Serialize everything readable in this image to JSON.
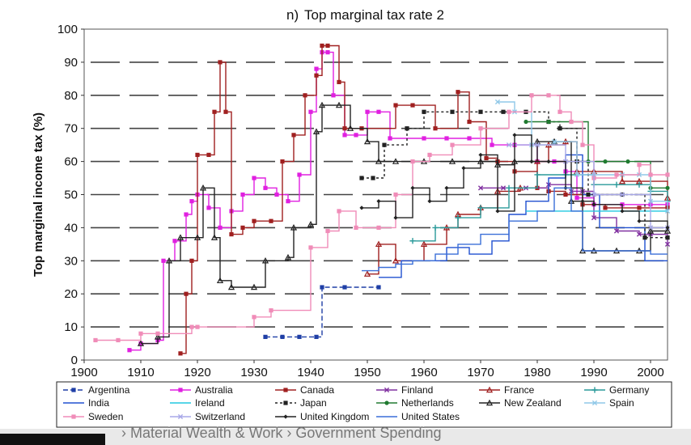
{
  "chart_data": {
    "type": "line",
    "title": "Top marginal tax rate 2",
    "panel_letter": "n)",
    "ylabel": "Top marginal income tax (%)",
    "xlabel": "",
    "xlim": [
      1900,
      2003
    ],
    "ylim": [
      0,
      100
    ],
    "x_ticks": [
      1900,
      1910,
      1920,
      1930,
      1940,
      1950,
      1960,
      1970,
      1980,
      1990,
      2000
    ],
    "y_ticks": [
      0,
      10,
      20,
      30,
      40,
      50,
      60,
      70,
      80,
      90,
      100
    ],
    "grid": "horizontal dashed",
    "legend_position": "bottom",
    "series": [
      {
        "name": "Argentina",
        "color": "#1f3fa6",
        "dash": "6,3",
        "marker": "square",
        "points": [
          [
            1932,
            7
          ],
          [
            1935,
            7
          ],
          [
            1938,
            7
          ],
          [
            1941,
            7
          ],
          [
            1942,
            22
          ],
          [
            1946,
            22
          ],
          [
            1952,
            22
          ]
        ]
      },
      {
        "name": "Australia",
        "color": "#e020e0",
        "dash": "",
        "marker": "square",
        "points": [
          [
            1908,
            3
          ],
          [
            1910,
            5
          ],
          [
            1913,
            6
          ],
          [
            1914,
            30
          ],
          [
            1916,
            36
          ],
          [
            1918,
            44
          ],
          [
            1919,
            48
          ],
          [
            1920,
            50
          ],
          [
            1922,
            46
          ],
          [
            1924,
            40
          ],
          [
            1926,
            45
          ],
          [
            1928,
            50
          ],
          [
            1930,
            55
          ],
          [
            1932,
            52
          ],
          [
            1934,
            50
          ],
          [
            1936,
            48
          ],
          [
            1938,
            56
          ],
          [
            1940,
            75
          ],
          [
            1941,
            88
          ],
          [
            1942,
            93
          ],
          [
            1943,
            93
          ],
          [
            1944,
            80
          ],
          [
            1946,
            68
          ],
          [
            1948,
            68
          ],
          [
            1950,
            75
          ],
          [
            1952,
            75
          ],
          [
            1954,
            67
          ],
          [
            1960,
            67
          ],
          [
            1964,
            67
          ],
          [
            1968,
            67
          ],
          [
            1972,
            65
          ],
          [
            1976,
            65
          ],
          [
            1980,
            60
          ],
          [
            1983,
            60
          ],
          [
            1985,
            57
          ],
          [
            1987,
            49
          ],
          [
            1990,
            47
          ],
          [
            1995,
            47
          ],
          [
            2000,
            47
          ],
          [
            2003,
            47
          ]
        ]
      },
      {
        "name": "Canada",
        "color": "#a02020",
        "dash": "",
        "marker": "square",
        "points": [
          [
            1917,
            2
          ],
          [
            1918,
            20
          ],
          [
            1919,
            30
          ],
          [
            1920,
            62
          ],
          [
            1922,
            62
          ],
          [
            1923,
            75
          ],
          [
            1924,
            90
          ],
          [
            1925,
            75
          ],
          [
            1926,
            38
          ],
          [
            1928,
            40
          ],
          [
            1930,
            42
          ],
          [
            1933,
            42
          ],
          [
            1935,
            60
          ],
          [
            1937,
            68
          ],
          [
            1939,
            80
          ],
          [
            1941,
            86
          ],
          [
            1942,
            95
          ],
          [
            1943,
            95
          ],
          [
            1945,
            84
          ],
          [
            1946,
            70
          ],
          [
            1949,
            70
          ],
          [
            1955,
            77
          ],
          [
            1958,
            77
          ],
          [
            1962,
            70
          ],
          [
            1966,
            81
          ],
          [
            1968,
            72
          ],
          [
            1971,
            61
          ],
          [
            1973,
            60
          ],
          [
            1976,
            57
          ],
          [
            1980,
            52
          ],
          [
            1982,
            51
          ],
          [
            1985,
            50
          ],
          [
            1988,
            47
          ],
          [
            1992,
            46
          ],
          [
            1998,
            46
          ],
          [
            2003,
            46
          ]
        ]
      },
      {
        "name": "Finland",
        "color": "#8030a0",
        "dash": "",
        "marker": "x",
        "points": [
          [
            1970,
            52
          ],
          [
            1974,
            52
          ],
          [
            1978,
            52
          ],
          [
            1982,
            53
          ],
          [
            1986,
            51
          ],
          [
            1988,
            51
          ],
          [
            1990,
            43
          ],
          [
            1994,
            39
          ],
          [
            1998,
            38
          ],
          [
            2000,
            38
          ],
          [
            2003,
            35
          ]
        ]
      },
      {
        "name": "France",
        "color": "#a02020",
        "dash": "",
        "marker": "triangle",
        "points": [
          [
            1950,
            26
          ],
          [
            1952,
            35
          ],
          [
            1955,
            30
          ],
          [
            1960,
            35
          ],
          [
            1964,
            40
          ],
          [
            1966,
            44
          ],
          [
            1970,
            46
          ],
          [
            1973,
            51
          ],
          [
            1977,
            52
          ],
          [
            1980,
            60
          ],
          [
            1982,
            65
          ],
          [
            1985,
            66
          ],
          [
            1987,
            57
          ],
          [
            1990,
            57
          ],
          [
            1995,
            54
          ],
          [
            1998,
            54
          ],
          [
            2003,
            49
          ]
        ]
      },
      {
        "name": "Germany",
        "color": "#2a9a9a",
        "dash": "",
        "marker": "plus",
        "points": [
          [
            1958,
            36
          ],
          [
            1962,
            40
          ],
          [
            1966,
            43
          ],
          [
            1970,
            46
          ],
          [
            1975,
            52
          ],
          [
            1980,
            56
          ],
          [
            1985,
            56
          ],
          [
            1990,
            53
          ],
          [
            1994,
            53
          ],
          [
            1998,
            53
          ],
          [
            2000,
            51
          ],
          [
            2003,
            48
          ]
        ]
      },
      {
        "name": "India",
        "color": "#2050d0",
        "dash": "",
        "marker": "none",
        "points": [
          [
            1952,
            25
          ],
          [
            1956,
            30
          ],
          [
            1960,
            30
          ],
          [
            1964,
            34
          ],
          [
            1968,
            32
          ],
          [
            1972,
            36
          ],
          [
            1975,
            44
          ],
          [
            1978,
            48
          ],
          [
            1982,
            55
          ],
          [
            1985,
            62
          ],
          [
            1988,
            50
          ],
          [
            1991,
            40
          ],
          [
            1996,
            40
          ],
          [
            1999,
            30
          ],
          [
            2003,
            30
          ]
        ]
      },
      {
        "name": "Ireland",
        "color": "#20c8e0",
        "dash": "",
        "marker": "none",
        "points": [
          [
            1978,
            45
          ],
          [
            1982,
            45
          ],
          [
            1986,
            45
          ],
          [
            1990,
            45
          ],
          [
            1994,
            45
          ],
          [
            1998,
            45
          ],
          [
            2003,
            45
          ]
        ]
      },
      {
        "name": "Japan",
        "color": "#222222",
        "dash": "3,3",
        "marker": "square",
        "points": [
          [
            1949,
            55
          ],
          [
            1951,
            55
          ],
          [
            1953,
            65
          ],
          [
            1957,
            70
          ],
          [
            1960,
            75
          ],
          [
            1965,
            75
          ],
          [
            1970,
            75
          ],
          [
            1974,
            75
          ],
          [
            1978,
            75
          ],
          [
            1982,
            72
          ],
          [
            1984,
            70
          ],
          [
            1987,
            60
          ],
          [
            1989,
            50
          ],
          [
            1995,
            50
          ],
          [
            1999,
            37
          ],
          [
            2003,
            37
          ]
        ]
      },
      {
        "name": "Netherlands",
        "color": "#207a30",
        "dash": "",
        "marker": "circle",
        "points": [
          [
            1978,
            72
          ],
          [
            1982,
            72
          ],
          [
            1986,
            72
          ],
          [
            1989,
            60
          ],
          [
            1992,
            60
          ],
          [
            1996,
            60
          ],
          [
            2000,
            52
          ],
          [
            2003,
            52
          ]
        ]
      },
      {
        "name": "New Zealand",
        "color": "#222222",
        "dash": "",
        "marker": "triangle",
        "points": [
          [
            1910,
            5
          ],
          [
            1913,
            7
          ],
          [
            1915,
            30
          ],
          [
            1917,
            37
          ],
          [
            1920,
            37
          ],
          [
            1921,
            52
          ],
          [
            1923,
            37
          ],
          [
            1924,
            24
          ],
          [
            1926,
            22
          ],
          [
            1930,
            22
          ],
          [
            1932,
            30
          ],
          [
            1936,
            31
          ],
          [
            1937,
            40
          ],
          [
            1940,
            41
          ],
          [
            1941,
            69
          ],
          [
            1942,
            77
          ],
          [
            1945,
            77
          ],
          [
            1947,
            70
          ],
          [
            1950,
            66
          ],
          [
            1952,
            60
          ],
          [
            1955,
            60
          ],
          [
            1960,
            60
          ],
          [
            1965,
            60
          ],
          [
            1970,
            60
          ],
          [
            1973,
            59
          ],
          [
            1976,
            60
          ],
          [
            1980,
            66
          ],
          [
            1983,
            66
          ],
          [
            1986,
            48
          ],
          [
            1988,
            33
          ],
          [
            1990,
            33
          ],
          [
            1994,
            33
          ],
          [
            1998,
            33
          ],
          [
            2000,
            39
          ],
          [
            2003,
            39
          ]
        ]
      },
      {
        "name": "Spain",
        "color": "#90c8e8",
        "dash": "",
        "marker": "x",
        "points": [
          [
            1973,
            78
          ],
          [
            1976,
            75
          ],
          [
            1979,
            65
          ],
          [
            1983,
            66
          ],
          [
            1987,
            56
          ],
          [
            1990,
            56
          ],
          [
            1995,
            56
          ],
          [
            1998,
            56
          ],
          [
            2000,
            48
          ],
          [
            2003,
            45
          ]
        ]
      },
      {
        "name": "Sweden",
        "color": "#f08cb8",
        "dash": "",
        "marker": "square",
        "points": [
          [
            1902,
            6
          ],
          [
            1906,
            6
          ],
          [
            1910,
            8
          ],
          [
            1913,
            8
          ],
          [
            1919,
            10
          ],
          [
            1920,
            10
          ],
          [
            1930,
            13
          ],
          [
            1933,
            15
          ],
          [
            1940,
            34
          ],
          [
            1943,
            39
          ],
          [
            1945,
            45
          ],
          [
            1948,
            40
          ],
          [
            1952,
            40
          ],
          [
            1955,
            50
          ],
          [
            1958,
            60
          ],
          [
            1961,
            62
          ],
          [
            1965,
            65
          ],
          [
            1970,
            70
          ],
          [
            1975,
            75
          ],
          [
            1979,
            80
          ],
          [
            1982,
            80
          ],
          [
            1984,
            75
          ],
          [
            1986,
            72
          ],
          [
            1988,
            65
          ],
          [
            1990,
            55
          ],
          [
            1994,
            56
          ],
          [
            1998,
            59
          ],
          [
            2000,
            56
          ],
          [
            2003,
            56
          ]
        ]
      },
      {
        "name": "Switzerland",
        "color": "#a8a8e8",
        "dash": "",
        "marker": "x",
        "points": [
          [
            1975,
            65
          ],
          [
            1980,
            65
          ],
          [
            1985,
            60
          ],
          [
            1990,
            50
          ],
          [
            1995,
            50
          ],
          [
            2000,
            40
          ],
          [
            2003,
            40
          ]
        ]
      },
      {
        "name": "United Kingdom",
        "color": "#222222",
        "dash": "",
        "marker": "diamond",
        "points": [
          [
            1949,
            46
          ],
          [
            1952,
            48
          ],
          [
            1955,
            43
          ],
          [
            1958,
            52
          ],
          [
            1961,
            48
          ],
          [
            1964,
            52
          ],
          [
            1967,
            58
          ],
          [
            1970,
            62
          ],
          [
            1973,
            45
          ],
          [
            1976,
            68
          ],
          [
            1979,
            60
          ],
          [
            1982,
            60
          ],
          [
            1985,
            52
          ],
          [
            1988,
            48
          ],
          [
            1990,
            47
          ],
          [
            1995,
            45
          ],
          [
            1998,
            42
          ],
          [
            2003,
            40
          ]
        ]
      },
      {
        "name": "United States",
        "color": "#3a6fd8",
        "dash": "",
        "marker": "none",
        "points": [
          [
            1949,
            27
          ],
          [
            1952,
            28
          ],
          [
            1955,
            29
          ],
          [
            1958,
            30
          ],
          [
            1962,
            32
          ],
          [
            1966,
            35
          ],
          [
            1970,
            38
          ],
          [
            1975,
            42
          ],
          [
            1980,
            45
          ],
          [
            1983,
            52
          ],
          [
            1986,
            45
          ],
          [
            1988,
            33
          ],
          [
            1992,
            33
          ],
          [
            1996,
            33
          ],
          [
            2000,
            32
          ],
          [
            2003,
            32
          ]
        ]
      }
    ]
  },
  "footer": {
    "text": "› Material Wealth & Work › Government Spending"
  }
}
